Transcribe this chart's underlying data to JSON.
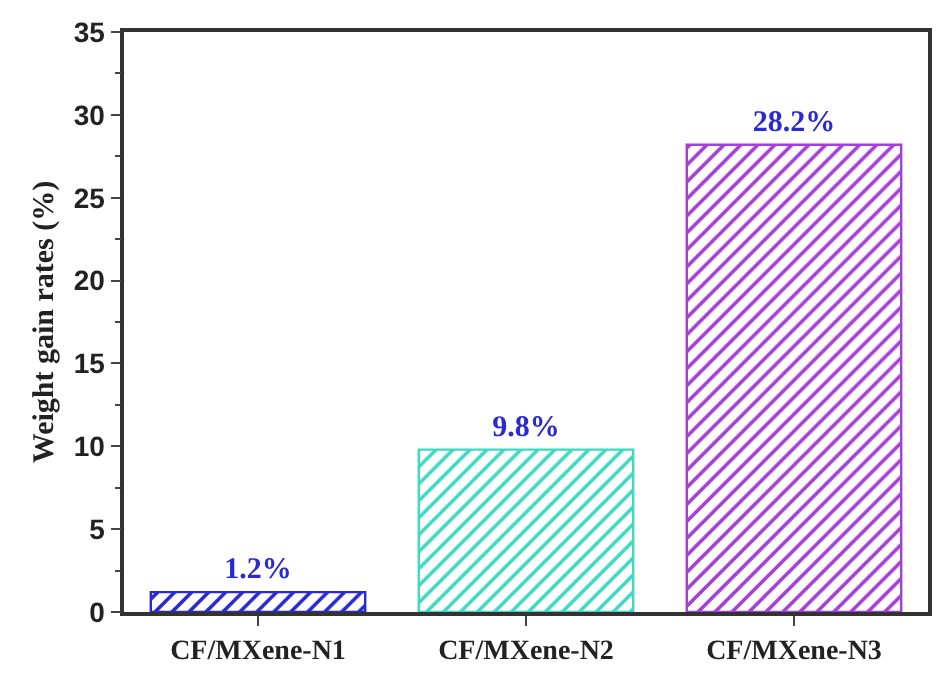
{
  "chart_data": {
    "type": "bar",
    "ylabel": "Weight gain rates (%)",
    "categories": [
      "CF/MXene-N1",
      "CF/MXene-N2",
      "CF/MXene-N3"
    ],
    "values": [
      1.2,
      9.8,
      28.2
    ],
    "value_labels": [
      "1.2%",
      "9.8%",
      "28.2%"
    ],
    "colors": [
      "#2a2ad0",
      "#3fd9c0",
      "#a43fd9"
    ],
    "ylim": [
      0,
      35
    ],
    "yticks": [
      0,
      5,
      10,
      15,
      20,
      25,
      30,
      35
    ],
    "legend": false
  }
}
